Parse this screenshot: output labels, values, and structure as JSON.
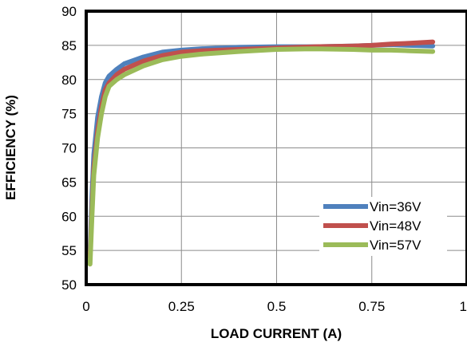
{
  "chart_data": {
    "type": "line",
    "xlabel": "LOAD CURRENT  (A)",
    "ylabel": "EFFICIENCY   (%)",
    "xlim": [
      0,
      1
    ],
    "ylim": [
      50,
      90
    ],
    "x_ticks": [
      "0",
      "0.25",
      "0.5",
      "0.75",
      "1"
    ],
    "x_tick_values": [
      0,
      0.25,
      0.5,
      0.75,
      1
    ],
    "y_ticks": [
      "50",
      "55",
      "60",
      "65",
      "70",
      "75",
      "80",
      "85",
      "90"
    ],
    "y_tick_values": [
      50,
      55,
      60,
      65,
      70,
      75,
      80,
      85,
      90
    ],
    "grid": true,
    "legend_position": "bottom-right",
    "series": [
      {
        "name": "Vin=36V",
        "color": "#4f81bd",
        "x": [
          0.01,
          0.015,
          0.02,
          0.03,
          0.04,
          0.05,
          0.06,
          0.08,
          0.1,
          0.15,
          0.2,
          0.25,
          0.3,
          0.4,
          0.5,
          0.6,
          0.7,
          0.75,
          0.8,
          0.85,
          0.91
        ],
        "y": [
          55,
          63,
          69,
          74.5,
          77.5,
          79.5,
          80.5,
          81.5,
          82.3,
          83.3,
          84,
          84.3,
          84.5,
          84.7,
          84.8,
          84.8,
          84.9,
          85,
          85.1,
          85,
          84.9
        ]
      },
      {
        "name": "Vin=48V",
        "color": "#c0504d",
        "x": [
          0.01,
          0.015,
          0.02,
          0.03,
          0.04,
          0.05,
          0.06,
          0.08,
          0.1,
          0.15,
          0.2,
          0.25,
          0.3,
          0.4,
          0.5,
          0.6,
          0.7,
          0.75,
          0.8,
          0.85,
          0.91
        ],
        "y": [
          54,
          61,
          67,
          72.5,
          76,
          78.5,
          79.5,
          80.7,
          81.5,
          82.7,
          83.5,
          84,
          84.2,
          84.4,
          84.6,
          84.8,
          84.9,
          85,
          85.2,
          85.3,
          85.5
        ]
      },
      {
        "name": "Vin=57V",
        "color": "#9bbb59",
        "x": [
          0.01,
          0.015,
          0.02,
          0.03,
          0.04,
          0.05,
          0.06,
          0.08,
          0.1,
          0.15,
          0.2,
          0.25,
          0.3,
          0.4,
          0.5,
          0.6,
          0.7,
          0.75,
          0.8,
          0.85,
          0.91
        ],
        "y": [
          53,
          60,
          66,
          71.5,
          75,
          77.5,
          79,
          80,
          80.7,
          82,
          82.9,
          83.4,
          83.7,
          84.1,
          84.4,
          84.5,
          84.4,
          84.3,
          84.3,
          84.2,
          84.1
        ]
      }
    ]
  }
}
